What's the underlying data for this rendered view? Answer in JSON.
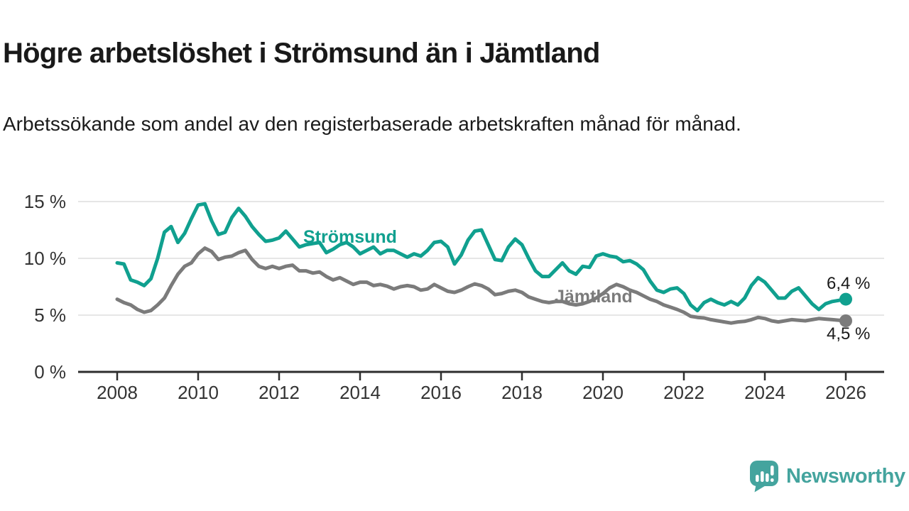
{
  "header": {
    "title": "Högre arbetslöshet i Strömsund än i Jämtland",
    "subtitle": "Arbetssökande som andel av den registerbaserade arbetskraften månad för månad."
  },
  "branding": {
    "logo_text": "Newsworthy",
    "logo_color": "#44a49e",
    "logo_icon": "speech-bubble-bar-chart-icon"
  },
  "chart_data": {
    "type": "line",
    "title": "Högre arbetslöshet i Strömsund än i Jämtland",
    "unit": "%",
    "grid": "horizontal",
    "legend_position": "inline-labels",
    "x_start": 2008.0,
    "x_step": 0.166667,
    "x_axis": {
      "ticks": [
        "2008",
        "2010",
        "2012",
        "2014",
        "2016",
        "2018",
        "2020",
        "2022",
        "2024",
        "2026"
      ],
      "range": [
        2007.0,
        2027.0
      ]
    },
    "y_axis": {
      "ticks": [
        {
          "label": "0 %",
          "value": 0
        },
        {
          "label": "5 %",
          "value": 5
        },
        {
          "label": "10 %",
          "value": 10
        },
        {
          "label": "15 %",
          "value": 15
        }
      ],
      "range": [
        0,
        15.9
      ]
    },
    "colors": {
      "grid": "#dedede",
      "axis": "#2e2e2e",
      "tick_text": "#333333"
    },
    "series": [
      {
        "name": "Strömsund",
        "color": "#10a08f",
        "end_label": "6,4 %",
        "end_value": 6.4,
        "values": [
          9.6,
          9.5,
          8.1,
          7.9,
          7.6,
          8.2,
          10.0,
          12.3,
          12.8,
          11.4,
          12.2,
          13.5,
          14.7,
          14.8,
          13.3,
          12.1,
          12.3,
          13.6,
          14.4,
          13.7,
          12.8,
          12.1,
          11.5,
          11.6,
          11.8,
          12.4,
          11.7,
          11.0,
          11.2,
          11.3,
          11.4,
          10.5,
          10.8,
          11.2,
          11.4,
          11.0,
          10.4,
          10.7,
          11.0,
          10.4,
          10.7,
          10.7,
          10.4,
          10.1,
          10.4,
          10.2,
          10.7,
          11.4,
          11.5,
          11.0,
          9.5,
          10.3,
          11.6,
          12.4,
          12.5,
          11.2,
          9.9,
          9.8,
          11.0,
          11.7,
          11.2,
          10.0,
          8.9,
          8.4,
          8.4,
          9.0,
          9.6,
          8.9,
          8.6,
          9.3,
          9.2,
          10.2,
          10.4,
          10.2,
          10.1,
          9.7,
          9.8,
          9.5,
          9.0,
          8.0,
          7.2,
          7.0,
          7.3,
          7.4,
          6.9,
          5.9,
          5.4,
          6.1,
          6.4,
          6.1,
          5.9,
          6.2,
          5.9,
          6.5,
          7.6,
          8.3,
          7.9,
          7.2,
          6.5,
          6.5,
          7.1,
          7.4,
          6.7,
          6.0,
          5.5,
          6.0,
          6.2,
          6.3,
          6.4
        ]
      },
      {
        "name": "Jämtland",
        "color": "#7b7b7b",
        "end_label": "4,5 %",
        "end_value": 4.5,
        "values": [
          6.4,
          6.1,
          5.9,
          5.5,
          5.25,
          5.4,
          5.9,
          6.5,
          7.6,
          8.6,
          9.3,
          9.6,
          10.4,
          10.9,
          10.6,
          9.9,
          10.1,
          10.2,
          10.5,
          10.7,
          9.9,
          9.3,
          9.1,
          9.3,
          9.1,
          9.3,
          9.4,
          8.9,
          8.9,
          8.7,
          8.8,
          8.4,
          8.1,
          8.3,
          8.0,
          7.7,
          7.9,
          7.9,
          7.6,
          7.7,
          7.55,
          7.3,
          7.5,
          7.6,
          7.5,
          7.2,
          7.3,
          7.7,
          7.4,
          7.1,
          7.0,
          7.2,
          7.5,
          7.75,
          7.6,
          7.3,
          6.8,
          6.9,
          7.1,
          7.2,
          7.0,
          6.6,
          6.4,
          6.2,
          6.1,
          6.2,
          6.2,
          6.0,
          5.9,
          6.0,
          6.2,
          6.5,
          6.9,
          7.4,
          7.7,
          7.5,
          7.2,
          7.0,
          6.7,
          6.4,
          6.2,
          5.9,
          5.7,
          5.5,
          5.25,
          4.9,
          4.8,
          4.75,
          4.6,
          4.5,
          4.4,
          4.3,
          4.4,
          4.45,
          4.6,
          4.8,
          4.7,
          4.5,
          4.4,
          4.5,
          4.6,
          4.55,
          4.5,
          4.6,
          4.7,
          4.65,
          4.6,
          4.55,
          4.5
        ]
      }
    ]
  }
}
